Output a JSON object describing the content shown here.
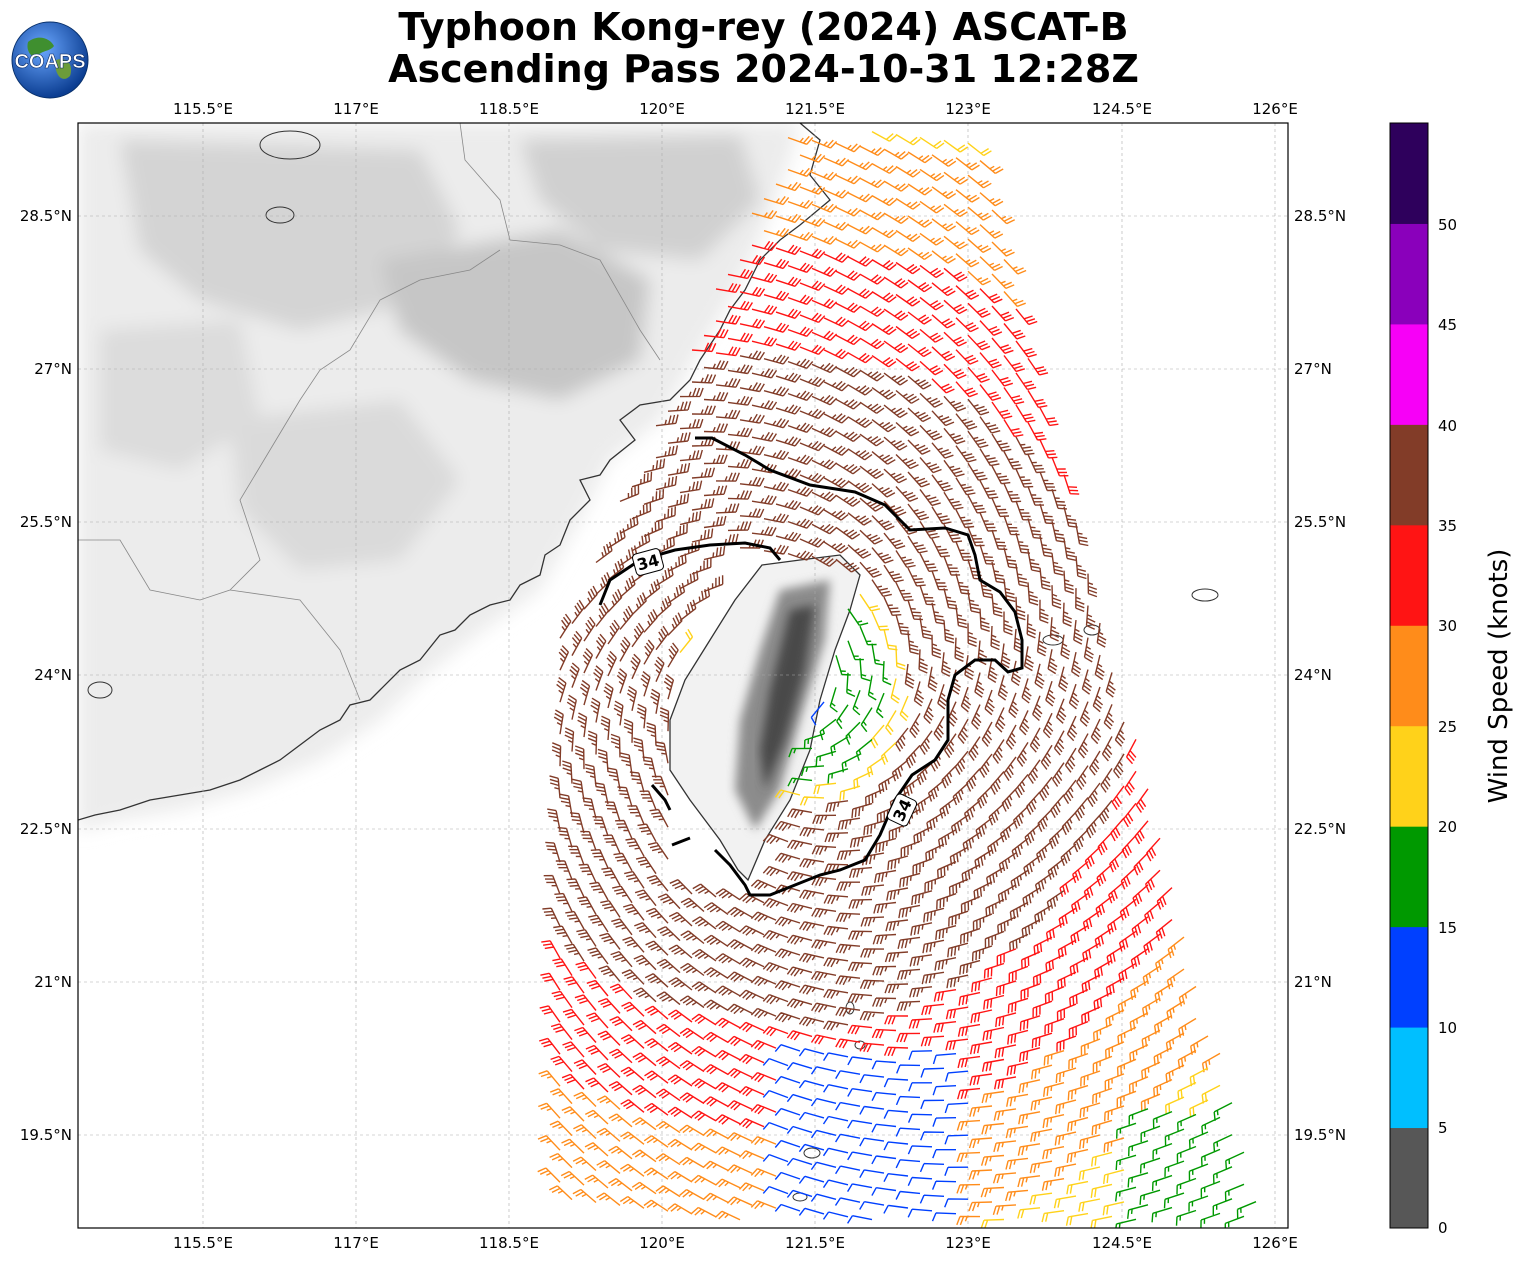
{
  "title_line1": "Typhoon Kong-rey (2024) ASCAT-B",
  "title_line2": "Ascending Pass 2024-10-31 12:28Z",
  "logo_text": "COAPS",
  "lon_ticks": [
    "115.5°E",
    "117°E",
    "118.5°E",
    "120°E",
    "121.5°E",
    "123°E",
    "124.5°E",
    "126°E"
  ],
  "lat_ticks": [
    "28.5°N",
    "27°N",
    "25.5°N",
    "24°N",
    "22.5°N",
    "21°N",
    "19.5°N"
  ],
  "contour_labels": [
    "34",
    "34"
  ],
  "colorbar": {
    "label": "Wind Speed (knots)",
    "ticks": [
      "0",
      "5",
      "10",
      "15",
      "20",
      "25",
      "30",
      "35",
      "40",
      "45",
      "50"
    ],
    "colors": [
      "#575757",
      "#00bfff",
      "#0040ff",
      "#009900",
      "#ffd21a",
      "#ff8c1a",
      "#ff1414",
      "#823c28",
      "#f700f7",
      "#8a00bb",
      "#2e005c"
    ]
  },
  "colors": {
    "calm": "#575757",
    "light": "#00bfff",
    "blue": "#0040ff",
    "green": "#009900",
    "yellow": "#ffd21a",
    "orange": "#ff8c1a",
    "red": "#ff1414",
    "brown": "#823c28",
    "magenta": "#f700f7",
    "purple": "#8a00bb",
    "navy": "#2e005c"
  },
  "wind_field": {
    "center_approx": [
      121.3,
      24.0
    ],
    "swath_note": "ASCAT-B ascending swath, wind barbs in knots"
  }
}
